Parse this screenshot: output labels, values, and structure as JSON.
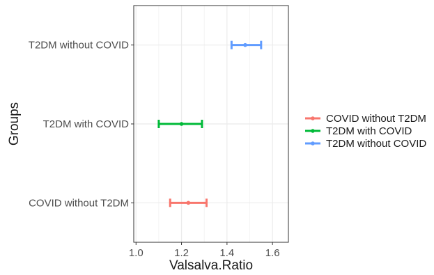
{
  "chart_data": {
    "type": "errorbar",
    "orientation": "horizontal",
    "title": "",
    "xlabel": "Valsalva.Ratio",
    "ylabel": "Groups",
    "xlim": [
      0.99,
      1.67
    ],
    "xticks": [
      1.0,
      1.2,
      1.4,
      1.6
    ],
    "xtick_labels": [
      "1.0",
      "1.2",
      "1.4",
      "1.6"
    ],
    "grid": true,
    "legend_position": "right",
    "categories": [
      "COVID without T2DM",
      "T2DM with COVID",
      "T2DM without COVID"
    ],
    "series": [
      {
        "name": "COVID without T2DM",
        "color": "#F8766D",
        "mean": 1.23,
        "lower": 1.15,
        "upper": 1.31
      },
      {
        "name": "T2DM with COVID",
        "color": "#00BA38",
        "mean": 1.2,
        "lower": 1.1,
        "upper": 1.29
      },
      {
        "name": "T2DM without COVID",
        "color": "#619CFF",
        "mean": 1.48,
        "lower": 1.42,
        "upper": 1.55
      }
    ]
  }
}
